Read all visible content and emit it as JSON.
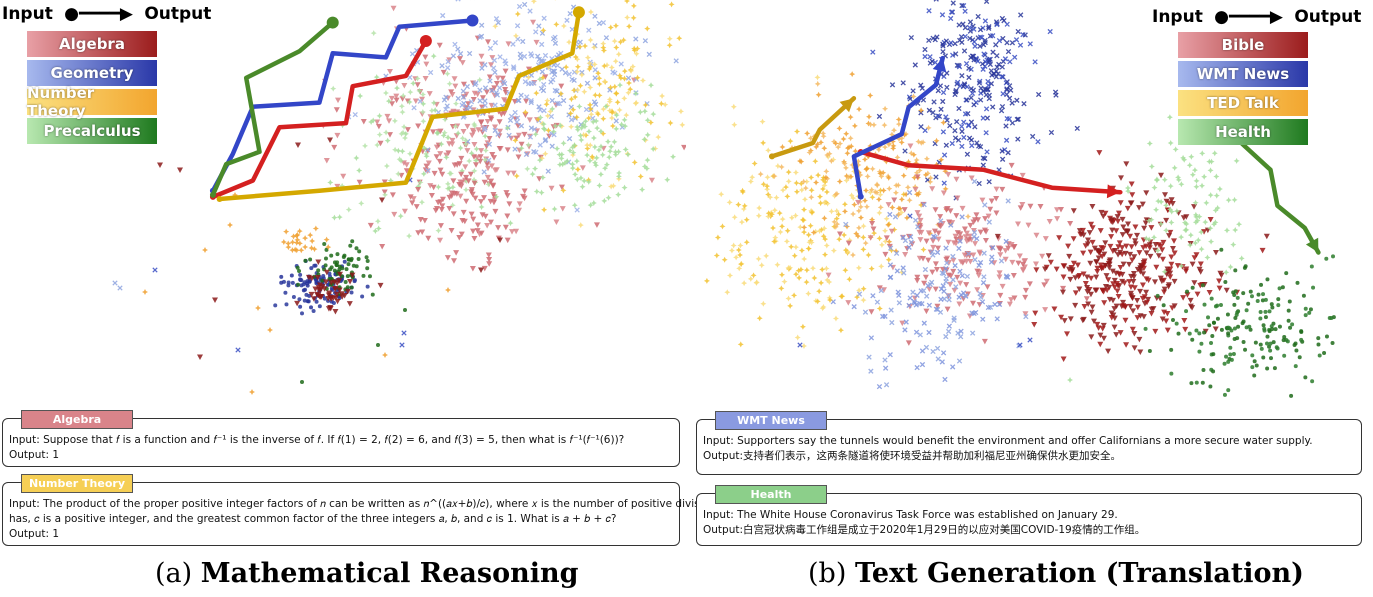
{
  "colors": {
    "red": "#c0392b",
    "red_light": "#d9848a",
    "red_dark": "#8b1a1a",
    "blue": "#3a4fc4",
    "blue_light": "#8fa5e0",
    "blue_dark": "#27339a",
    "yellow": "#f2c230",
    "yellow_light": "#f9dc7a",
    "orange": "#f0a030",
    "green": "#3d8f2e",
    "green_light": "#a5dd9a",
    "green_dark": "#1f6b1a"
  },
  "panel_a": {
    "io_input": "Input",
    "io_output": "Output",
    "legend": [
      {
        "label": "Algebra",
        "from": "#e8a0a6",
        "to": "#9b1c1c"
      },
      {
        "label": "Geometry",
        "from": "#a7b9ee",
        "to": "#2a38a8"
      },
      {
        "label": "Number Theory",
        "from": "#fbe181",
        "to": "#f2a52e"
      },
      {
        "label": "Precalculus",
        "from": "#b8e8b0",
        "to": "#1f7a1f"
      }
    ],
    "box1": {
      "tag": "Algebra",
      "tag_color": "#d9848a",
      "input": "Input: Suppose that 𝑓 is a function and 𝑓⁻¹ is the inverse of 𝑓.  If 𝑓(1) = 2, 𝑓(2)  =  6, and 𝑓(3) = 5, then what is 𝑓⁻¹(𝑓⁻¹(6))?",
      "output": "Output: 1"
    },
    "box2": {
      "tag": "Number Theory",
      "tag_color": "#f6cf55",
      "input_line1": "Input: The product of the proper positive integer factors of 𝑛 can be written as 𝑛^((𝑎𝑥+𝑏)/𝑐), where 𝑥 is the number of positive divisors 𝑛",
      "input_line2": "has, 𝑐 is a positive integer, and the greatest common factor of the three integers 𝑎, 𝑏, and 𝑐 is 1. What is 𝑎 + 𝑏 + 𝑐?",
      "output": "Output: 1"
    },
    "caption_prefix": "(a) ",
    "caption_bold": "Mathematical Reasoning"
  },
  "panel_b": {
    "io_input": "Input",
    "io_output": "Output",
    "legend": [
      {
        "label": "Bible",
        "from": "#e8a0a6",
        "to": "#9b1c1c"
      },
      {
        "label": "WMT News",
        "from": "#a7b9ee",
        "to": "#2a38a8"
      },
      {
        "label": "TED Talk",
        "from": "#fbe181",
        "to": "#f2a52e"
      },
      {
        "label": "Health",
        "from": "#b8e8b0",
        "to": "#1f7a1f"
      }
    ],
    "box1": {
      "tag": "WMT News",
      "tag_color": "#8a9ae0",
      "input": "Input: Supporters say the tunnels would benefit the environment and offer Californians a more secure water supply.",
      "output": "Output:支持者们表示，这两条隧道将使环境受益并帮助加利福尼亚州确保供水更加安全。"
    },
    "box2": {
      "tag": "Health",
      "tag_color": "#8ccf8a",
      "input": "Input: The White House Coronavirus Task Force was established on January 29.",
      "output": "Output:白宫冠状病毒工作组是成立于2020年1月29日的以应对美国COVID-19疫情的工作组。"
    },
    "caption_prefix": "(b) ",
    "caption_bold": "Text Generation (Translation)"
  },
  "chart_data": [
    {
      "type": "scatter",
      "panel": "a",
      "series": [
        {
          "name": "Algebra",
          "trajectory": [
            [
              0.32,
              0.96
            ],
            [
              0.38,
              0.88
            ],
            [
              0.42,
              0.62
            ],
            [
              0.52,
              0.6
            ],
            [
              0.53,
              0.42
            ],
            [
              0.61,
              0.37
            ],
            [
              0.64,
              0.2
            ]
          ]
        },
        {
          "name": "Geometry",
          "trajectory": [
            [
              0.32,
              0.93
            ],
            [
              0.35,
              0.75
            ],
            [
              0.38,
              0.52
            ],
            [
              0.48,
              0.5
            ],
            [
              0.5,
              0.26
            ],
            [
              0.58,
              0.28
            ],
            [
              0.6,
              0.13
            ],
            [
              0.71,
              0.1
            ]
          ]
        },
        {
          "name": "Number Theory",
          "trajectory": [
            [
              0.33,
              0.97
            ],
            [
              0.48,
              0.93
            ],
            [
              0.61,
              0.89
            ],
            [
              0.65,
              0.57
            ],
            [
              0.76,
              0.53
            ],
            [
              0.78,
              0.37
            ],
            [
              0.86,
              0.26
            ],
            [
              0.87,
              0.06
            ]
          ]
        },
        {
          "name": "Precalculus",
          "trajectory": [
            [
              0.32,
              0.95
            ],
            [
              0.34,
              0.8
            ],
            [
              0.39,
              0.74
            ],
            [
              0.37,
              0.38
            ],
            [
              0.45,
              0.25
            ],
            [
              0.5,
              0.11
            ]
          ]
        }
      ]
    },
    {
      "type": "scatter",
      "panel": "b",
      "series": [
        {
          "name": "Bible",
          "trajectory": [
            [
              0.25,
              0.68
            ],
            [
              0.32,
              0.74
            ],
            [
              0.43,
              0.76
            ],
            [
              0.53,
              0.84
            ],
            [
              0.63,
              0.86
            ]
          ]
        },
        {
          "name": "WMT News",
          "trajectory": [
            [
              0.25,
              0.88
            ],
            [
              0.24,
              0.7
            ],
            [
              0.31,
              0.6
            ],
            [
              0.32,
              0.48
            ],
            [
              0.36,
              0.38
            ],
            [
              0.37,
              0.26
            ]
          ]
        },
        {
          "name": "TED Talk",
          "trajectory": [
            [
              0.12,
              0.7
            ],
            [
              0.18,
              0.64
            ],
            [
              0.19,
              0.58
            ],
            [
              0.24,
              0.44
            ]
          ]
        },
        {
          "name": "Health",
          "trajectory": [
            [
              0.8,
              0.62
            ],
            [
              0.85,
              0.76
            ],
            [
              0.86,
              0.92
            ],
            [
              0.9,
              1.02
            ],
            [
              0.92,
              1.13
            ]
          ]
        }
      ]
    }
  ]
}
